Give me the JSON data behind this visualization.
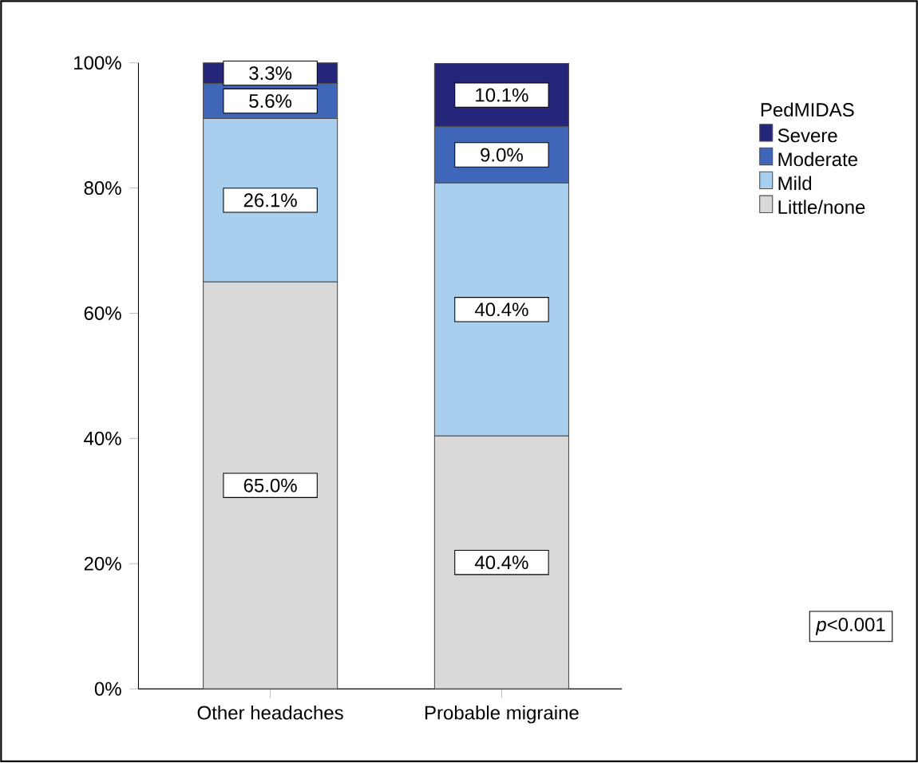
{
  "chart_data": {
    "type": "bar",
    "stacked": true,
    "categories": [
      "Other headaches",
      "Probable migraine"
    ],
    "series": [
      {
        "name": "Little/none",
        "color": "#d9d9d9",
        "values": [
          65.0,
          40.4
        ],
        "value_labels": [
          "65.0%",
          "40.4%"
        ]
      },
      {
        "name": "Mild",
        "color": "#a9cfee",
        "values": [
          26.1,
          40.4
        ],
        "value_labels": [
          "26.1%",
          "40.4%"
        ]
      },
      {
        "name": "Moderate",
        "color": "#3f66b8",
        "values": [
          5.6,
          9.0
        ],
        "value_labels": [
          "5.6%",
          "9.0%"
        ]
      },
      {
        "name": "Severe",
        "color": "#25267a",
        "values": [
          3.3,
          10.1
        ],
        "value_labels": [
          "3.3%",
          "10.1%"
        ]
      }
    ],
    "ylim": [
      0,
      100
    ],
    "yticks": [
      {
        "value": 0,
        "label": "0%"
      },
      {
        "value": 20,
        "label": "20%"
      },
      {
        "value": 40,
        "label": "40%"
      },
      {
        "value": 60,
        "label": "60%"
      },
      {
        "value": 80,
        "label": "80%"
      },
      {
        "value": 100,
        "label": "100%"
      }
    ],
    "legend": "right",
    "legend_title": "PedMIDAS",
    "annotations": [
      "*p*<0.001"
    ]
  }
}
